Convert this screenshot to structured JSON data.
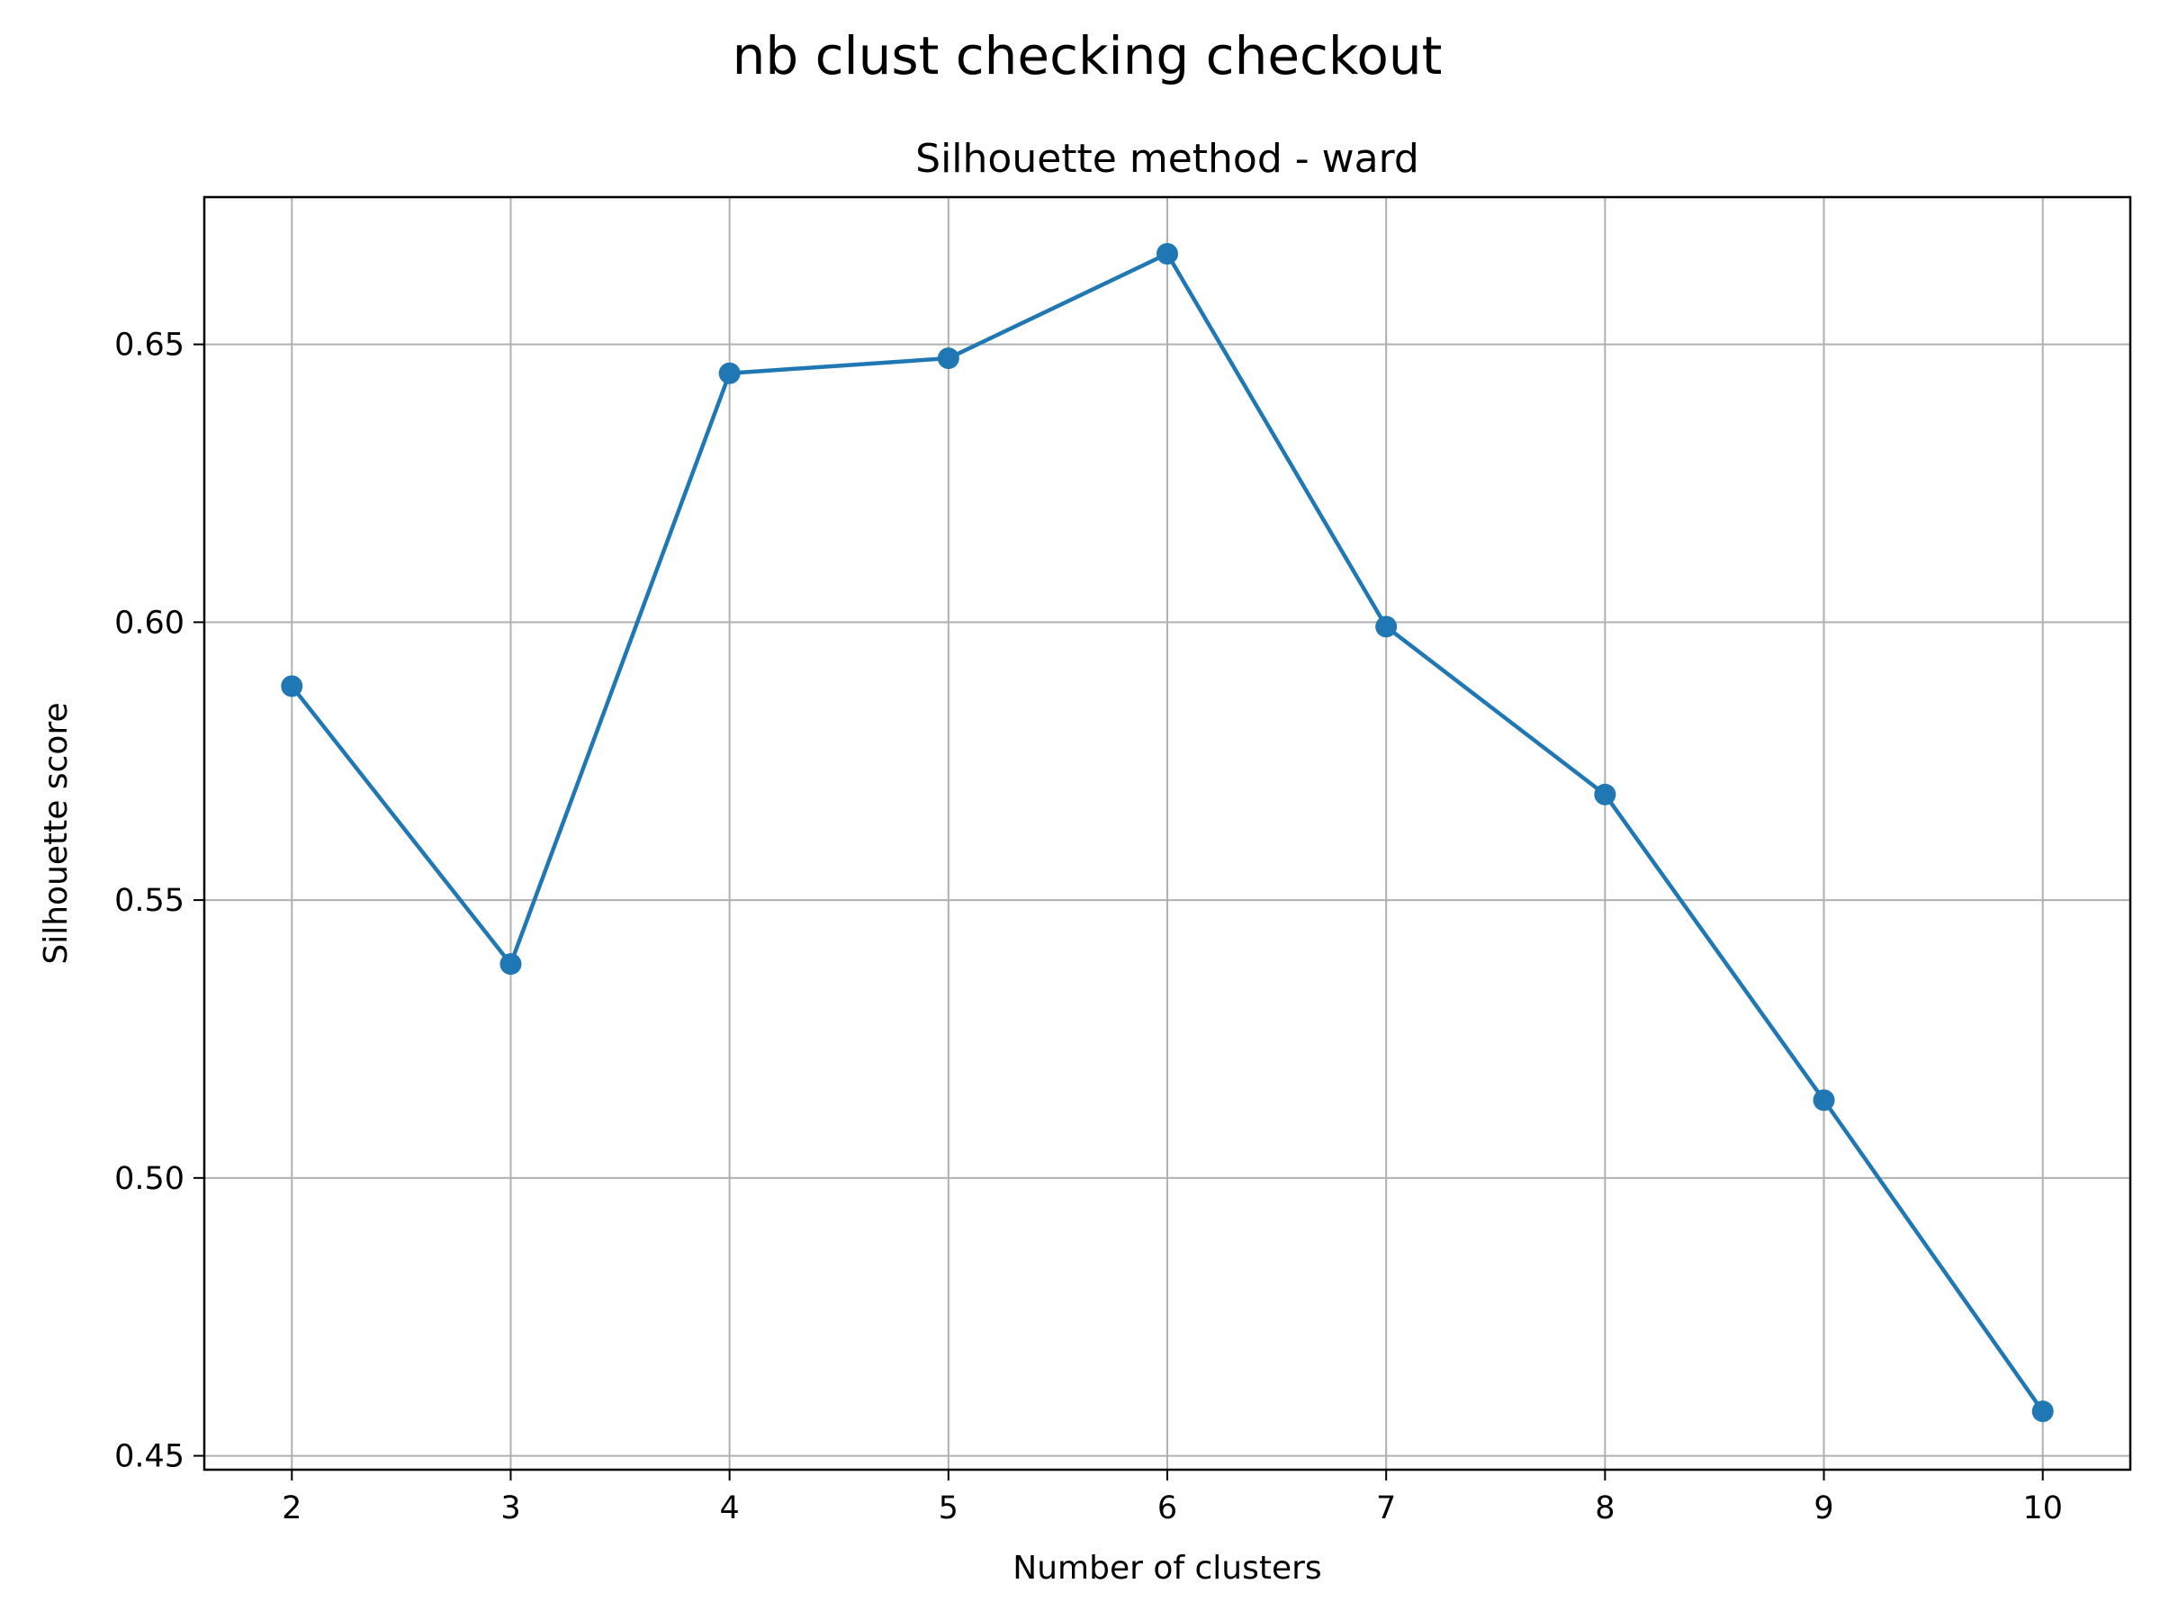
{
  "figure": {
    "suptitle": "nb clust checking checkout"
  },
  "chart_data": {
    "type": "line",
    "title": "Silhouette method - ward",
    "xlabel": "Number of clusters",
    "ylabel": "Silhouette score",
    "x": [
      2,
      3,
      4,
      5,
      6,
      7,
      8,
      9,
      10
    ],
    "series": [
      {
        "values": [
          0.5885,
          0.5385,
          0.6448,
          0.6475,
          0.6663,
          0.5992,
          0.569,
          0.514,
          0.458
        ]
      }
    ],
    "xticks": [
      "2",
      "3",
      "4",
      "5",
      "6",
      "7",
      "8",
      "9",
      "10"
    ],
    "yticks": [
      "0.45",
      "0.50",
      "0.55",
      "0.60",
      "0.65"
    ],
    "ytick_values": [
      0.45,
      0.5,
      0.55,
      0.6,
      0.65
    ],
    "xlim": [
      1.6,
      10.4
    ],
    "ylim": [
      0.4475,
      0.6765
    ],
    "grid": true,
    "marker": "circle",
    "color": "#1f77b4"
  }
}
